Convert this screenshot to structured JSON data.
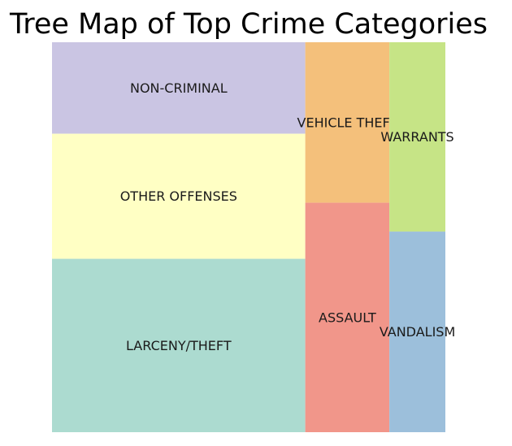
{
  "chart_data": {
    "type": "treemap",
    "title": "Tree Map of Top Crime Categories",
    "categories": [
      "LARCENY/THEFT",
      "OTHER OFFENSES",
      "NON-CRIMINAL",
      "ASSAULT",
      "VEHICLE THEFT",
      "VANDALISM",
      "WARRANTS"
    ],
    "values": [
      174900,
      126182,
      92304,
      76876,
      53781,
      44725,
      42214
    ],
    "colors": [
      "#acdbd0",
      "#ffffc4",
      "#cac5e3",
      "#f1968a",
      "#f4c07b",
      "#9cbfdb",
      "#c6e486"
    ],
    "grid": false,
    "legend": "none"
  }
}
